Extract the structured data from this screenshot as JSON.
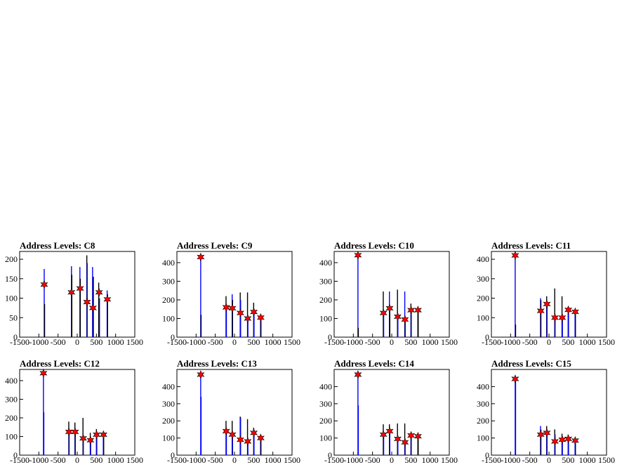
{
  "chart_data": [
    {
      "type": "bar",
      "title": "Address Levels: C8",
      "xlim": [
        -1500,
        1500
      ],
      "ylim": [
        0,
        220
      ],
      "x_ticks": [
        -1500,
        -1000,
        -500,
        0,
        500,
        1000,
        1500
      ],
      "x_tick_labels": [
        "-1500",
        "-1000",
        "-500",
        "0",
        "500",
        "1000",
        "1500"
      ],
      "y_ticks": [
        0,
        50,
        100,
        150,
        200
      ],
      "y_tick_labels": [
        "0",
        "50",
        "100",
        "150",
        "200"
      ],
      "histogram": [
        {
          "x": -860,
          "value": 175,
          "color": "#0000ff"
        },
        {
          "x": -850,
          "value": 85,
          "color": "#000000"
        },
        {
          "x": -150,
          "value": 182,
          "color": "#0000ff"
        },
        {
          "x": -140,
          "value": 160,
          "color": "#000000"
        },
        {
          "x": 70,
          "value": 180,
          "color": "#0000ff"
        },
        {
          "x": 80,
          "value": 150,
          "color": "#000000"
        },
        {
          "x": 250,
          "value": 210,
          "color": "#000000"
        },
        {
          "x": 260,
          "value": 190,
          "color": "#0000ff"
        },
        {
          "x": 400,
          "value": 180,
          "color": "#0000ff"
        },
        {
          "x": 420,
          "value": 155,
          "color": "#000000"
        },
        {
          "x": 560,
          "value": 140,
          "color": "#000000"
        },
        {
          "x": 580,
          "value": 100,
          "color": "#0000ff"
        },
        {
          "x": 780,
          "value": 120,
          "color": "#0000ff"
        },
        {
          "x": 790,
          "value": 110,
          "color": "#000000"
        }
      ],
      "peaks": [
        {
          "x": -860,
          "y": 135
        },
        {
          "x": -150,
          "y": 115
        },
        {
          "x": 75,
          "y": 125
        },
        {
          "x": 255,
          "y": 90
        },
        {
          "x": 410,
          "y": 75
        },
        {
          "x": 570,
          "y": 115
        },
        {
          "x": 785,
          "y": 97
        }
      ]
    },
    {
      "type": "bar",
      "title": "Address Levels: C9",
      "xlim": [
        -1500,
        1500
      ],
      "ylim": [
        0,
        460
      ],
      "x_ticks": [
        -1500,
        -1000,
        -500,
        0,
        500,
        1000,
        1500
      ],
      "x_tick_labels": [
        "-1500",
        "-1000",
        "-500",
        "0",
        "500",
        "1000",
        "1500"
      ],
      "y_ticks": [
        0,
        100,
        200,
        300,
        400
      ],
      "y_tick_labels": [
        "0",
        "100",
        "200",
        "300",
        "400"
      ],
      "histogram": [
        {
          "x": -880,
          "value": 430,
          "color": "#0000ff"
        },
        {
          "x": -870,
          "value": 120,
          "color": "#000000"
        },
        {
          "x": -220,
          "value": 220,
          "color": "#000000"
        },
        {
          "x": -210,
          "value": 160,
          "color": "#0000ff"
        },
        {
          "x": -60,
          "value": 230,
          "color": "#0000ff"
        },
        {
          "x": -50,
          "value": 200,
          "color": "#000000"
        },
        {
          "x": 150,
          "value": 240,
          "color": "#000000"
        },
        {
          "x": 160,
          "value": 200,
          "color": "#0000ff"
        },
        {
          "x": 340,
          "value": 240,
          "color": "#000000"
        },
        {
          "x": 350,
          "value": 110,
          "color": "#0000ff"
        },
        {
          "x": 500,
          "value": 185,
          "color": "#000000"
        },
        {
          "x": 510,
          "value": 150,
          "color": "#0000ff"
        },
        {
          "x": 680,
          "value": 110,
          "color": "#0000ff"
        },
        {
          "x": 690,
          "value": 90,
          "color": "#000000"
        }
      ],
      "peaks": [
        {
          "x": -880,
          "y": 430
        },
        {
          "x": -215,
          "y": 160
        },
        {
          "x": -55,
          "y": 155
        },
        {
          "x": 155,
          "y": 130
        },
        {
          "x": 345,
          "y": 100
        },
        {
          "x": 505,
          "y": 135
        },
        {
          "x": 685,
          "y": 105
        }
      ]
    },
    {
      "type": "bar",
      "title": "Address Levels: C10",
      "xlim": [
        -1500,
        1500
      ],
      "ylim": [
        0,
        460
      ],
      "x_ticks": [
        -1500,
        -1000,
        -500,
        0,
        500,
        1000,
        1500
      ],
      "x_tick_labels": [
        "-1500",
        "-1000",
        "-500",
        "0",
        "500",
        "1000",
        "1500"
      ],
      "y_ticks": [
        0,
        100,
        200,
        300,
        400
      ],
      "y_tick_labels": [
        "0",
        "100",
        "200",
        "300",
        "400"
      ],
      "histogram": [
        {
          "x": -880,
          "value": 445,
          "color": "#0000ff"
        },
        {
          "x": -870,
          "value": 50,
          "color": "#000000"
        },
        {
          "x": -220,
          "value": 245,
          "color": "#000000"
        },
        {
          "x": -210,
          "value": 130,
          "color": "#0000ff"
        },
        {
          "x": -60,
          "value": 245,
          "color": "#0000ff"
        },
        {
          "x": -50,
          "value": 160,
          "color": "#000000"
        },
        {
          "x": 150,
          "value": 255,
          "color": "#000000"
        },
        {
          "x": 160,
          "value": 110,
          "color": "#0000ff"
        },
        {
          "x": 340,
          "value": 245,
          "color": "#0000ff"
        },
        {
          "x": 350,
          "value": 95,
          "color": "#000000"
        },
        {
          "x": 500,
          "value": 180,
          "color": "#000000"
        },
        {
          "x": 510,
          "value": 150,
          "color": "#0000ff"
        },
        {
          "x": 680,
          "value": 150,
          "color": "#0000ff"
        },
        {
          "x": 690,
          "value": 140,
          "color": "#000000"
        }
      ],
      "peaks": [
        {
          "x": -880,
          "y": 440
        },
        {
          "x": -215,
          "y": 130
        },
        {
          "x": -55,
          "y": 155
        },
        {
          "x": 155,
          "y": 110
        },
        {
          "x": 345,
          "y": 95
        },
        {
          "x": 505,
          "y": 145
        },
        {
          "x": 685,
          "y": 145
        }
      ]
    },
    {
      "type": "bar",
      "title": "Address Levels: C11",
      "xlim": [
        -1500,
        1500
      ],
      "ylim": [
        0,
        440
      ],
      "x_ticks": [
        -1500,
        -1000,
        -500,
        0,
        500,
        1000,
        1500
      ],
      "x_tick_labels": [
        "-1500",
        "-1000",
        "-500",
        "0",
        "500",
        "1000",
        "1500"
      ],
      "y_ticks": [
        0,
        100,
        200,
        300,
        400
      ],
      "y_tick_labels": [
        "0",
        "100",
        "200",
        "300",
        "400"
      ],
      "histogram": [
        {
          "x": -880,
          "value": 420,
          "color": "#0000ff"
        },
        {
          "x": -870,
          "value": 65,
          "color": "#000000"
        },
        {
          "x": -220,
          "value": 200,
          "color": "#0000ff"
        },
        {
          "x": -210,
          "value": 190,
          "color": "#000000"
        },
        {
          "x": -60,
          "value": 210,
          "color": "#000000"
        },
        {
          "x": -50,
          "value": 170,
          "color": "#0000ff"
        },
        {
          "x": 150,
          "value": 250,
          "color": "#000000"
        },
        {
          "x": 160,
          "value": 100,
          "color": "#0000ff"
        },
        {
          "x": 340,
          "value": 210,
          "color": "#000000"
        },
        {
          "x": 350,
          "value": 100,
          "color": "#0000ff"
        },
        {
          "x": 500,
          "value": 155,
          "color": "#000000"
        },
        {
          "x": 510,
          "value": 140,
          "color": "#0000ff"
        },
        {
          "x": 680,
          "value": 130,
          "color": "#0000ff"
        },
        {
          "x": 690,
          "value": 120,
          "color": "#000000"
        }
      ],
      "peaks": [
        {
          "x": -880,
          "y": 420
        },
        {
          "x": -215,
          "y": 135
        },
        {
          "x": -55,
          "y": 170
        },
        {
          "x": 155,
          "y": 100
        },
        {
          "x": 345,
          "y": 100
        },
        {
          "x": 505,
          "y": 140
        },
        {
          "x": 685,
          "y": 130
        }
      ]
    },
    {
      "type": "bar",
      "title": "Address Levels: C12",
      "xlim": [
        -1500,
        1500
      ],
      "ylim": [
        0,
        460
      ],
      "x_ticks": [
        -1500,
        -1000,
        -500,
        0,
        500,
        1000,
        1500
      ],
      "x_tick_labels": [
        "-1500",
        "-1000",
        "-500",
        "0",
        "500",
        "1000",
        "1500"
      ],
      "y_ticks": [
        0,
        100,
        200,
        300,
        400
      ],
      "y_tick_labels": [
        "0",
        "100",
        "200",
        "300",
        "400"
      ],
      "histogram": [
        {
          "x": -880,
          "value": 440,
          "color": "#0000ff"
        },
        {
          "x": -870,
          "value": 230,
          "color": "#0000ff"
        },
        {
          "x": -220,
          "value": 180,
          "color": "#000000"
        },
        {
          "x": -210,
          "value": 125,
          "color": "#0000ff"
        },
        {
          "x": -60,
          "value": 175,
          "color": "#000000"
        },
        {
          "x": -50,
          "value": 125,
          "color": "#0000ff"
        },
        {
          "x": 150,
          "value": 200,
          "color": "#000000"
        },
        {
          "x": 160,
          "value": 90,
          "color": "#0000ff"
        },
        {
          "x": 340,
          "value": 120,
          "color": "#000000"
        },
        {
          "x": 350,
          "value": 80,
          "color": "#0000ff"
        },
        {
          "x": 500,
          "value": 140,
          "color": "#000000"
        },
        {
          "x": 510,
          "value": 110,
          "color": "#0000ff"
        },
        {
          "x": 680,
          "value": 110,
          "color": "#0000ff"
        },
        {
          "x": 690,
          "value": 100,
          "color": "#000000"
        }
      ],
      "peaks": [
        {
          "x": -880,
          "y": 440
        },
        {
          "x": -215,
          "y": 125
        },
        {
          "x": -55,
          "y": 125
        },
        {
          "x": 155,
          "y": 90
        },
        {
          "x": 345,
          "y": 80
        },
        {
          "x": 505,
          "y": 110
        },
        {
          "x": 685,
          "y": 110
        }
      ]
    },
    {
      "type": "bar",
      "title": "Address Levels: C13",
      "xlim": [
        -1500,
        1500
      ],
      "ylim": [
        0,
        500
      ],
      "x_ticks": [
        -1500,
        -1000,
        -500,
        0,
        500,
        1000,
        1500
      ],
      "x_tick_labels": [
        "-1500",
        "-1000",
        "-500",
        "0",
        "500",
        "1000",
        "1500"
      ],
      "y_ticks": [
        0,
        100,
        200,
        300,
        400
      ],
      "y_tick_labels": [
        "0",
        "100",
        "200",
        "300",
        "400"
      ],
      "histogram": [
        {
          "x": -880,
          "value": 470,
          "color": "#0000ff"
        },
        {
          "x": -870,
          "value": 340,
          "color": "#0000ff"
        },
        {
          "x": -220,
          "value": 200,
          "color": "#000000"
        },
        {
          "x": -210,
          "value": 140,
          "color": "#0000ff"
        },
        {
          "x": -60,
          "value": 200,
          "color": "#000000"
        },
        {
          "x": -50,
          "value": 120,
          "color": "#0000ff"
        },
        {
          "x": 150,
          "value": 225,
          "color": "#000000"
        },
        {
          "x": 160,
          "value": 220,
          "color": "#0000ff"
        },
        {
          "x": 340,
          "value": 210,
          "color": "#000000"
        },
        {
          "x": 350,
          "value": 80,
          "color": "#0000ff"
        },
        {
          "x": 500,
          "value": 160,
          "color": "#000000"
        },
        {
          "x": 510,
          "value": 130,
          "color": "#0000ff"
        },
        {
          "x": 680,
          "value": 120,
          "color": "#0000ff"
        },
        {
          "x": 690,
          "value": 100,
          "color": "#000000"
        }
      ],
      "peaks": [
        {
          "x": -880,
          "y": 470
        },
        {
          "x": -215,
          "y": 140
        },
        {
          "x": -55,
          "y": 120
        },
        {
          "x": 155,
          "y": 90
        },
        {
          "x": 345,
          "y": 80
        },
        {
          "x": 505,
          "y": 130
        },
        {
          "x": 685,
          "y": 100
        }
      ]
    },
    {
      "type": "bar",
      "title": "Address Levels: C14",
      "xlim": [
        -1500,
        1500
      ],
      "ylim": [
        0,
        500
      ],
      "x_ticks": [
        -1500,
        -1000,
        -500,
        0,
        500,
        1000,
        1500
      ],
      "x_tick_labels": [
        "-1500",
        "-1000",
        "-500",
        "0",
        "500",
        "1000",
        "1500"
      ],
      "y_ticks": [
        0,
        100,
        200,
        300,
        400
      ],
      "y_tick_labels": [
        "0",
        "100",
        "200",
        "300",
        "400"
      ],
      "histogram": [
        {
          "x": -880,
          "value": 470,
          "color": "#0000ff"
        },
        {
          "x": -870,
          "value": 290,
          "color": "#0000ff"
        },
        {
          "x": -220,
          "value": 180,
          "color": "#000000"
        },
        {
          "x": -210,
          "value": 120,
          "color": "#0000ff"
        },
        {
          "x": -60,
          "value": 180,
          "color": "#000000"
        },
        {
          "x": -50,
          "value": 140,
          "color": "#0000ff"
        },
        {
          "x": 150,
          "value": 185,
          "color": "#000000"
        },
        {
          "x": 160,
          "value": 95,
          "color": "#0000ff"
        },
        {
          "x": 340,
          "value": 185,
          "color": "#000000"
        },
        {
          "x": 350,
          "value": 75,
          "color": "#0000ff"
        },
        {
          "x": 500,
          "value": 130,
          "color": "#000000"
        },
        {
          "x": 510,
          "value": 115,
          "color": "#0000ff"
        },
        {
          "x": 680,
          "value": 115,
          "color": "#0000ff"
        },
        {
          "x": 690,
          "value": 105,
          "color": "#000000"
        }
      ],
      "peaks": [
        {
          "x": -880,
          "y": 470
        },
        {
          "x": -215,
          "y": 120
        },
        {
          "x": -55,
          "y": 140
        },
        {
          "x": 155,
          "y": 95
        },
        {
          "x": 345,
          "y": 75
        },
        {
          "x": 505,
          "y": 115
        },
        {
          "x": 685,
          "y": 110
        }
      ]
    },
    {
      "type": "bar",
      "title": "Address Levels: C15",
      "xlim": [
        -1500,
        1500
      ],
      "ylim": [
        0,
        500
      ],
      "x_ticks": [
        -1500,
        -1000,
        -500,
        0,
        500,
        1000,
        1500
      ],
      "x_tick_labels": [
        "-1500",
        "-1000",
        "-500",
        "0",
        "500",
        "1000",
        "1500"
      ],
      "y_ticks": [
        0,
        100,
        200,
        300,
        400
      ],
      "y_tick_labels": [
        "0",
        "100",
        "200",
        "300",
        "400"
      ],
      "histogram": [
        {
          "x": -880,
          "value": 450,
          "color": "#0000ff"
        },
        {
          "x": -870,
          "value": 440,
          "color": "#0000ff"
        },
        {
          "x": -220,
          "value": 170,
          "color": "#0000ff"
        },
        {
          "x": -210,
          "value": 150,
          "color": "#000000"
        },
        {
          "x": -60,
          "value": 170,
          "color": "#000000"
        },
        {
          "x": -50,
          "value": 130,
          "color": "#0000ff"
        },
        {
          "x": 150,
          "value": 150,
          "color": "#000000"
        },
        {
          "x": 160,
          "value": 120,
          "color": "#0000ff"
        },
        {
          "x": 340,
          "value": 125,
          "color": "#000000"
        },
        {
          "x": 350,
          "value": 95,
          "color": "#0000ff"
        },
        {
          "x": 500,
          "value": 120,
          "color": "#000000"
        },
        {
          "x": 510,
          "value": 95,
          "color": "#0000ff"
        },
        {
          "x": 680,
          "value": 90,
          "color": "#0000ff"
        },
        {
          "x": 690,
          "value": 80,
          "color": "#000000"
        }
      ],
      "peaks": [
        {
          "x": -880,
          "y": 445
        },
        {
          "x": -215,
          "y": 120
        },
        {
          "x": -55,
          "y": 130
        },
        {
          "x": 155,
          "y": 80
        },
        {
          "x": 345,
          "y": 90
        },
        {
          "x": 505,
          "y": 95
        },
        {
          "x": 685,
          "y": 85
        }
      ]
    }
  ],
  "colors": {
    "series_primary": "#0000ff",
    "series_secondary": "#000000",
    "peak_marker": "#ff0000"
  }
}
